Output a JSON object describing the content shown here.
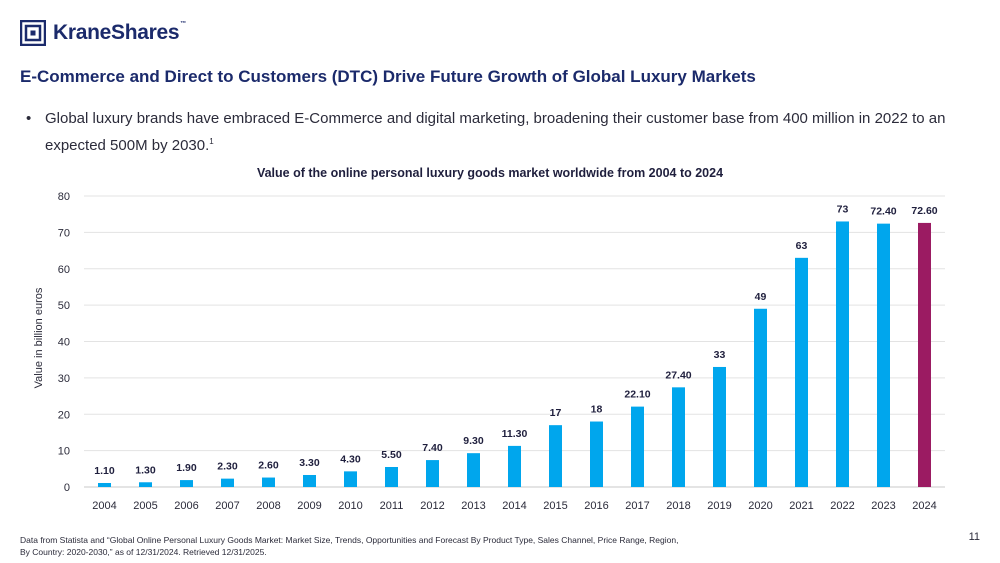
{
  "brand": {
    "name": "KraneShares",
    "tm": "™",
    "color": "#1b2a6b"
  },
  "headline": "E-Commerce and Direct to Customers (DTC) Drive Future Growth of Global Luxury Markets",
  "bullet": {
    "text": "Global luxury brands have embraced E-Commerce and digital marketing, broadening their customer base from 400 million in 2022 to an expected 500M by 2030.",
    "footnote_mark": "1"
  },
  "chart_data": {
    "type": "bar",
    "title": "Value of the online personal luxury goods market worldwide from 2004 to 2024",
    "xlabel": "",
    "ylabel": "Value in billion euros",
    "ylim": [
      0,
      80
    ],
    "yticks": [
      "0",
      "10",
      "20",
      "30",
      "40",
      "50",
      "60",
      "70",
      "80"
    ],
    "grid": true,
    "categories": [
      "2004",
      "2005",
      "2006",
      "2007",
      "2008",
      "2009",
      "2010",
      "2011",
      "2012",
      "2013",
      "2014",
      "2015",
      "2016",
      "2017",
      "2018",
      "2019",
      "2020",
      "2021",
      "2022",
      "2023",
      "2024"
    ],
    "values": [
      1.1,
      1.3,
      1.9,
      2.3,
      2.6,
      3.3,
      4.3,
      5.5,
      7.4,
      9.3,
      11.3,
      17,
      18,
      22.1,
      27.4,
      33,
      49,
      63,
      73,
      72.4,
      72.6
    ],
    "labels": [
      "1.10",
      "1.30",
      "1.90",
      "2.30",
      "2.60",
      "3.30",
      "4.30",
      "5.50",
      "7.40",
      "9.30",
      "11.30",
      "17",
      "18",
      "22.10",
      "27.40",
      "33",
      "49",
      "63",
      "73",
      "72.40",
      "72.60"
    ],
    "colors": {
      "default": "#00a6ed",
      "highlight": "#9b1b62"
    },
    "highlight_index": 20
  },
  "footnote": {
    "line1": "Data from Statista and “Global Online Personal Luxury Goods Market: Market Size, Trends, Opportunities and Forecast By Product Type, Sales Channel, Price Range, Region,",
    "line2": "By Country: 2020-2030,” as of 12/31/2024. Retrieved 12/31/2025."
  },
  "page_number": "11"
}
